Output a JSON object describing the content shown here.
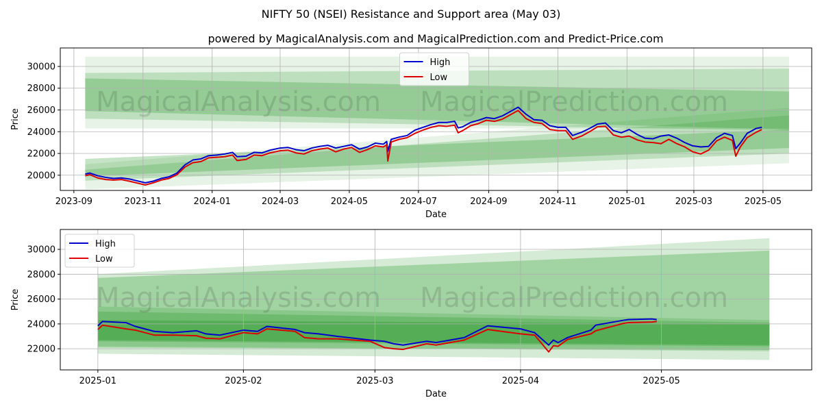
{
  "figure": {
    "title": "NIFTY 50 (NSEI) Resistance and Support area (May 03)",
    "subtitle": "powered by MagicalAnalysis.com and MagicalPrediction.com and Predict-Price.com",
    "watermarks": [
      "MagicalAnalysis.com",
      "MagicalPrediction.com"
    ]
  },
  "colors": {
    "high": "#0000cc",
    "low": "#dd0000",
    "band": "#2e9a2e",
    "grid": "#b0b0b0"
  },
  "chart_data": [
    {
      "type": "line",
      "xlabel": "Date",
      "ylabel": "Price",
      "grid": true,
      "legend": "top-center",
      "x_ticks": [
        "2023-09",
        "2023-11",
        "2024-01",
        "2024-03",
        "2024-05",
        "2024-07",
        "2024-09",
        "2024-11",
        "2025-01",
        "2025-03",
        "2025-05"
      ],
      "y_ticks": [
        "20000",
        "22000",
        "24000",
        "26000",
        "28000",
        "30000"
      ],
      "xlim": [
        "2023-08-20",
        "2025-06-13"
      ],
      "ylim": [
        18600,
        31700
      ],
      "series": [
        {
          "name": "High",
          "x": [
            "2023-09-11",
            "2023-09-15",
            "2023-09-22",
            "2023-09-29",
            "2023-10-06",
            "2023-10-13",
            "2023-10-20",
            "2023-10-26",
            "2023-11-03",
            "2023-11-10",
            "2023-11-17",
            "2023-11-24",
            "2023-12-01",
            "2023-12-08",
            "2023-12-15",
            "2023-12-22",
            "2023-12-29",
            "2024-01-05",
            "2024-01-12",
            "2024-01-19",
            "2024-01-23",
            "2024-01-31",
            "2024-02-07",
            "2024-02-14",
            "2024-02-21",
            "2024-03-01",
            "2024-03-08",
            "2024-03-15",
            "2024-03-22",
            "2024-03-29",
            "2024-04-05",
            "2024-04-12",
            "2024-04-19",
            "2024-04-26",
            "2024-05-03",
            "2024-05-10",
            "2024-05-17",
            "2024-05-24",
            "2024-05-31",
            "2024-06-03",
            "2024-06-04",
            "2024-06-07",
            "2024-06-14",
            "2024-06-21",
            "2024-06-28",
            "2024-07-05",
            "2024-07-12",
            "2024-07-19",
            "2024-07-26",
            "2024-08-02",
            "2024-08-05",
            "2024-08-09",
            "2024-08-16",
            "2024-08-23",
            "2024-08-30",
            "2024-09-06",
            "2024-09-13",
            "2024-09-20",
            "2024-09-27",
            "2024-10-04",
            "2024-10-11",
            "2024-10-18",
            "2024-10-25",
            "2024-11-01",
            "2024-11-08",
            "2024-11-14",
            "2024-11-22",
            "2024-11-29",
            "2024-12-06",
            "2024-12-13",
            "2024-12-20",
            "2024-12-27",
            "2025-01-03",
            "2025-01-10",
            "2025-01-17",
            "2025-01-24",
            "2025-01-31",
            "2025-02-07",
            "2025-02-14",
            "2025-02-21",
            "2025-02-28",
            "2025-03-07",
            "2025-03-14",
            "2025-03-21",
            "2025-03-28",
            "2025-04-04",
            "2025-04-07",
            "2025-04-11",
            "2025-04-17",
            "2025-04-25",
            "2025-04-30"
          ],
          "values": [
            20100,
            20200,
            19950,
            19800,
            19700,
            19750,
            19650,
            19500,
            19300,
            19450,
            19700,
            19850,
            20200,
            20950,
            21400,
            21500,
            21800,
            21850,
            21950,
            22100,
            21700,
            21750,
            22100,
            22050,
            22300,
            22500,
            22550,
            22350,
            22250,
            22500,
            22650,
            22750,
            22500,
            22650,
            22800,
            22400,
            22600,
            22950,
            22850,
            23100,
            22200,
            23300,
            23500,
            23650,
            24150,
            24400,
            24650,
            24850,
            24850,
            24950,
            24350,
            24450,
            24850,
            25050,
            25300,
            25200,
            25450,
            25850,
            26250,
            25600,
            25100,
            25050,
            24550,
            24400,
            24400,
            23650,
            23950,
            24300,
            24700,
            24800,
            24100,
            23900,
            24200,
            23750,
            23400,
            23350,
            23600,
            23700,
            23400,
            23000,
            22700,
            22600,
            22650,
            23450,
            23850,
            23650,
            22450,
            22950,
            23850,
            24300,
            24400
          ]
        },
        {
          "name": "Low",
          "x": [
            "2023-09-11",
            "2023-09-15",
            "2023-09-22",
            "2023-09-29",
            "2023-10-06",
            "2023-10-13",
            "2023-10-20",
            "2023-10-26",
            "2023-11-03",
            "2023-11-10",
            "2023-11-17",
            "2023-11-24",
            "2023-12-01",
            "2023-12-08",
            "2023-12-15",
            "2023-12-22",
            "2023-12-29",
            "2024-01-05",
            "2024-01-12",
            "2024-01-19",
            "2024-01-23",
            "2024-01-31",
            "2024-02-07",
            "2024-02-14",
            "2024-02-21",
            "2024-03-01",
            "2024-03-08",
            "2024-03-15",
            "2024-03-22",
            "2024-03-29",
            "2024-04-05",
            "2024-04-12",
            "2024-04-19",
            "2024-04-26",
            "2024-05-03",
            "2024-05-10",
            "2024-05-17",
            "2024-05-24",
            "2024-05-31",
            "2024-06-03",
            "2024-06-04",
            "2024-06-07",
            "2024-06-14",
            "2024-06-21",
            "2024-06-28",
            "2024-07-05",
            "2024-07-12",
            "2024-07-19",
            "2024-07-26",
            "2024-08-02",
            "2024-08-05",
            "2024-08-09",
            "2024-08-16",
            "2024-08-23",
            "2024-08-30",
            "2024-09-06",
            "2024-09-13",
            "2024-09-20",
            "2024-09-27",
            "2024-10-04",
            "2024-10-11",
            "2024-10-18",
            "2024-10-25",
            "2024-11-01",
            "2024-11-08",
            "2024-11-14",
            "2024-11-22",
            "2024-11-29",
            "2024-12-06",
            "2024-12-13",
            "2024-12-20",
            "2024-12-27",
            "2025-01-03",
            "2025-01-10",
            "2025-01-17",
            "2025-01-24",
            "2025-01-31",
            "2025-02-07",
            "2025-02-14",
            "2025-02-21",
            "2025-02-28",
            "2025-03-07",
            "2025-03-14",
            "2025-03-21",
            "2025-03-28",
            "2025-04-04",
            "2025-04-07",
            "2025-04-11",
            "2025-04-17",
            "2025-04-25",
            "2025-04-30"
          ],
          "values": [
            19950,
            20050,
            19750,
            19600,
            19550,
            19600,
            19450,
            19300,
            19100,
            19300,
            19550,
            19700,
            20050,
            20750,
            21150,
            21250,
            21600,
            21650,
            21700,
            21850,
            21350,
            21450,
            21850,
            21800,
            22050,
            22250,
            22300,
            22050,
            21950,
            22250,
            22400,
            22500,
            22150,
            22400,
            22550,
            22100,
            22350,
            22700,
            22600,
            22800,
            21300,
            23050,
            23300,
            23450,
            23850,
            24150,
            24400,
            24550,
            24500,
            24600,
            23900,
            24100,
            24550,
            24750,
            25050,
            24950,
            25150,
            25550,
            25950,
            25200,
            24850,
            24750,
            24200,
            24100,
            24100,
            23300,
            23600,
            24000,
            24450,
            24500,
            23700,
            23500,
            23600,
            23250,
            23050,
            23000,
            22900,
            23300,
            22900,
            22600,
            22150,
            21950,
            22300,
            23150,
            23500,
            23200,
            21750,
            22600,
            23450,
            23950,
            24200
          ]
        }
      ]
    },
    {
      "type": "line",
      "xlabel": "Date",
      "ylabel": "Price",
      "grid": true,
      "legend": "top-left",
      "x_ticks": [
        "2025-01",
        "2025-02",
        "2025-03",
        "2025-04",
        "2025-05"
      ],
      "y_ticks": [
        "22000",
        "24000",
        "26000",
        "28000",
        "30000"
      ],
      "xlim": [
        "2024-12-24",
        "2025-06-02"
      ],
      "ylim": [
        20300,
        31600
      ],
      "series": [
        {
          "name": "High",
          "x": [
            "2025-01-01",
            "2025-01-02",
            "2025-01-07",
            "2025-01-09",
            "2025-01-13",
            "2025-01-17",
            "2025-01-22",
            "2025-01-24",
            "2025-01-27",
            "2025-02-01",
            "2025-02-04",
            "2025-02-06",
            "2025-02-12",
            "2025-02-14",
            "2025-02-17",
            "2025-02-21",
            "2025-02-28",
            "2025-03-03",
            "2025-03-05",
            "2025-03-07",
            "2025-03-12",
            "2025-03-14",
            "2025-03-20",
            "2025-03-25",
            "2025-04-01",
            "2025-04-04",
            "2025-04-07",
            "2025-04-08",
            "2025-04-09",
            "2025-04-11",
            "2025-04-16",
            "2025-04-17",
            "2025-04-23",
            "2025-04-24",
            "2025-04-29",
            "2025-04-30"
          ],
          "values": [
            23850,
            24200,
            24100,
            23800,
            23400,
            23300,
            23450,
            23200,
            23100,
            23500,
            23400,
            23800,
            23550,
            23300,
            23200,
            23000,
            22700,
            22600,
            22400,
            22300,
            22600,
            22500,
            22900,
            23850,
            23600,
            23300,
            22300,
            22700,
            22500,
            22900,
            23500,
            23900,
            24300,
            24350,
            24400,
            24350
          ]
        },
        {
          "name": "Low",
          "x": [
            "2025-01-01",
            "2025-01-02",
            "2025-01-07",
            "2025-01-09",
            "2025-01-13",
            "2025-01-17",
            "2025-01-22",
            "2025-01-24",
            "2025-01-27",
            "2025-02-01",
            "2025-02-04",
            "2025-02-06",
            "2025-02-12",
            "2025-02-14",
            "2025-02-17",
            "2025-02-21",
            "2025-02-28",
            "2025-03-03",
            "2025-03-05",
            "2025-03-07",
            "2025-03-12",
            "2025-03-14",
            "2025-03-20",
            "2025-03-25",
            "2025-04-01",
            "2025-04-04",
            "2025-04-07",
            "2025-04-08",
            "2025-04-09",
            "2025-04-11",
            "2025-04-16",
            "2025-04-17",
            "2025-04-23",
            "2025-04-24",
            "2025-04-29",
            "2025-04-30"
          ],
          "values": [
            23550,
            23900,
            23600,
            23500,
            23100,
            23100,
            23050,
            22850,
            22800,
            23300,
            23200,
            23600,
            23400,
            22900,
            22800,
            22800,
            22600,
            22100,
            22000,
            21950,
            22400,
            22300,
            22700,
            23550,
            23200,
            23100,
            21750,
            22250,
            22200,
            22750,
            23200,
            23450,
            24050,
            24100,
            24150,
            24200
          ]
        }
      ]
    }
  ]
}
